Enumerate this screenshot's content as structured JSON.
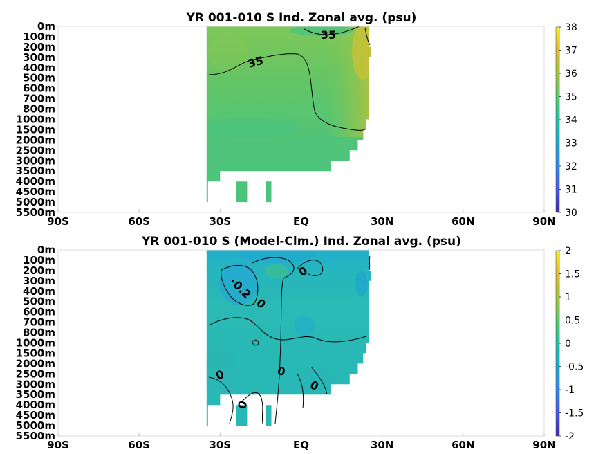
{
  "chart_data": [
    {
      "type": "heatmap",
      "title": "YR 001-010 S Ind. Zonal avg. (psu)",
      "x_ticks": [
        "90S",
        "60S",
        "30S",
        "EQ",
        "30N",
        "60N",
        "90N"
      ],
      "y_ticks": [
        "0m",
        "100m",
        "200m",
        "300m",
        "400m",
        "500m",
        "600m",
        "700m",
        "800m",
        "1000m",
        "1500m",
        "2000m",
        "2500m",
        "3000m",
        "3500m",
        "4000m",
        "4500m",
        "5000m",
        "5500m"
      ],
      "colorbar": {
        "min": 30,
        "max": 38,
        "ticks": [
          "38",
          "37",
          "36",
          "35",
          "34",
          "33",
          "32",
          "31",
          "30"
        ]
      },
      "contour_labels": [
        "35",
        "35"
      ],
      "data_extent": {
        "lat_min": -35,
        "lat_max": 25
      },
      "grid": false
    },
    {
      "type": "heatmap",
      "title": "YR 001-010 S (Model-Clm.) Ind. Zonal avg. (psu)",
      "x_ticks": [
        "90S",
        "60S",
        "30S",
        "EQ",
        "30N",
        "60N",
        "90N"
      ],
      "y_ticks": [
        "0m",
        "100m",
        "200m",
        "300m",
        "400m",
        "500m",
        "600m",
        "700m",
        "800m",
        "1000m",
        "1500m",
        "2000m",
        "2500m",
        "3000m",
        "3500m",
        "4000m",
        "4500m",
        "5000m",
        "5500m"
      ],
      "colorbar": {
        "min": -2,
        "max": 2,
        "ticks": [
          "2",
          "1.5",
          "1",
          "0.5",
          "0",
          "-0.5",
          "-1",
          "-1.5",
          "-2"
        ]
      },
      "contour_labels": [
        "-0.2",
        "0",
        "0",
        "0",
        "0",
        "0",
        "0"
      ],
      "data_extent": {
        "lat_min": -35,
        "lat_max": 25
      },
      "grid": false
    }
  ]
}
